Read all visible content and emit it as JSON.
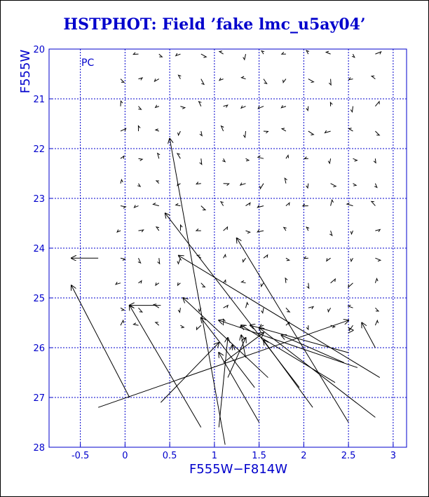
{
  "title": "HSTPHOT: Field ’fake lmc_u5ay04’",
  "chart_data": {
    "type": "scatter",
    "panel_label": "PC",
    "xlabel": "F555W−F814W",
    "ylabel": "F555W",
    "xlim": [
      -0.85,
      3.15
    ],
    "ylim": [
      28,
      20
    ],
    "xticks": [
      -0.5,
      0,
      0.5,
      1,
      1.5,
      2,
      2.5,
      3
    ],
    "xtick_labels": [
      "-0.5",
      "0",
      "0.5",
      "1",
      "1.5",
      "2",
      "2.5",
      "3"
    ],
    "yticks": [
      20,
      21,
      22,
      23,
      24,
      25,
      26,
      27,
      28
    ],
    "ytick_labels": [
      "20",
      "21",
      "22",
      "23",
      "24",
      "25",
      "26",
      "27",
      "28"
    ],
    "grid": true,
    "colors": {
      "axes": "#0000cc",
      "grid": "#0000cc",
      "vectors": "#000000",
      "title": "#0000cc"
    },
    "vectors": [
      {
        "x0": 0.7,
        "y0": 22.7,
        "x1": 0.9,
        "y1": 23.15
      },
      {
        "x0": 1.3,
        "y0": 25.1,
        "x1": 1.25,
        "y1": 25.2
      },
      {
        "x0": 1.6,
        "y0": 25.5,
        "x1": 2.2,
        "y1": 26.4
      }
    ],
    "arrows": [
      {
        "x_true": 1.12,
        "y_true": 27.95,
        "x_meas": 0.5,
        "y_meas": 21.8
      },
      {
        "x_true": -0.3,
        "y_true": 27.2,
        "x_meas": 2.5,
        "y_meas": 25.45
      },
      {
        "x_true": 0.05,
        "y_true": 27.0,
        "x_meas": -0.6,
        "y_meas": 24.75
      },
      {
        "x_true": 0.85,
        "y_true": 27.6,
        "x_meas": 0.05,
        "y_meas": 25.15
      },
      {
        "x_true": 0.4,
        "y_true": 25.15,
        "x_meas": 0.05,
        "y_meas": 25.15
      },
      {
        "x_true": 0.4,
        "y_true": 27.1,
        "x_meas": 1.05,
        "y_meas": 25.9
      },
      {
        "x_true": 1.05,
        "y_true": 27.6,
        "x_meas": 1.15,
        "y_meas": 25.8
      },
      {
        "x_true": 1.15,
        "y_true": 26.6,
        "x_meas": 1.35,
        "y_meas": 25.8
      },
      {
        "x_true": 1.5,
        "y_true": 27.5,
        "x_meas": 1.05,
        "y_meas": 26.1
      },
      {
        "x_true": 1.45,
        "y_true": 26.8,
        "x_meas": 0.85,
        "y_meas": 25.4
      },
      {
        "x_true": 1.6,
        "y_true": 26.6,
        "x_meas": 0.65,
        "y_meas": 25.0
      },
      {
        "x_true": 2.5,
        "y_true": 27.5,
        "x_meas": 1.25,
        "y_meas": 23.8
      },
      {
        "x_true": 2.85,
        "y_true": 26.6,
        "x_meas": 0.6,
        "y_meas": 24.15
      },
      {
        "x_true": 2.5,
        "y_true": 26.1,
        "x_meas": 1.4,
        "y_meas": 25.55
      },
      {
        "x_true": 2.1,
        "y_true": 27.2,
        "x_meas": 1.55,
        "y_meas": 25.85
      },
      {
        "x_true": 2.35,
        "y_true": 26.7,
        "x_meas": 1.3,
        "y_meas": 25.55
      },
      {
        "x_true": 2.6,
        "y_true": 26.4,
        "x_meas": 1.05,
        "y_meas": 25.45
      },
      {
        "x_true": 2.45,
        "y_true": 26.3,
        "x_meas": 1.75,
        "y_meas": 25.75
      },
      {
        "x_true": 2.8,
        "y_true": 27.4,
        "x_meas": 1.5,
        "y_meas": 25.6
      },
      {
        "x_true": 1.95,
        "y_true": 26.8,
        "x_meas": 0.45,
        "y_meas": 23.3
      },
      {
        "x_true": 2.8,
        "y_true": 26.0,
        "x_meas": 2.65,
        "y_meas": 25.5
      },
      {
        "x_true": 2.55,
        "y_true": 25.65,
        "x_meas": 2.55,
        "y_meas": 25.65
      },
      {
        "x_true": -0.3,
        "y_true": 24.2,
        "x_meas": -0.6,
        "y_meas": 24.2
      },
      {
        "x_true": 1.2,
        "y_true": 26.05,
        "x_meas": 1.2,
        "y_meas": 25.95
      },
      {
        "x_true": 1.35,
        "y_true": 26.2,
        "x_meas": 1.3,
        "y_meas": 25.75
      },
      {
        "x_true": 1.1,
        "y_true": 26.3,
        "x_meas": 1.55,
        "y_meas": 25.7
      }
    ]
  }
}
